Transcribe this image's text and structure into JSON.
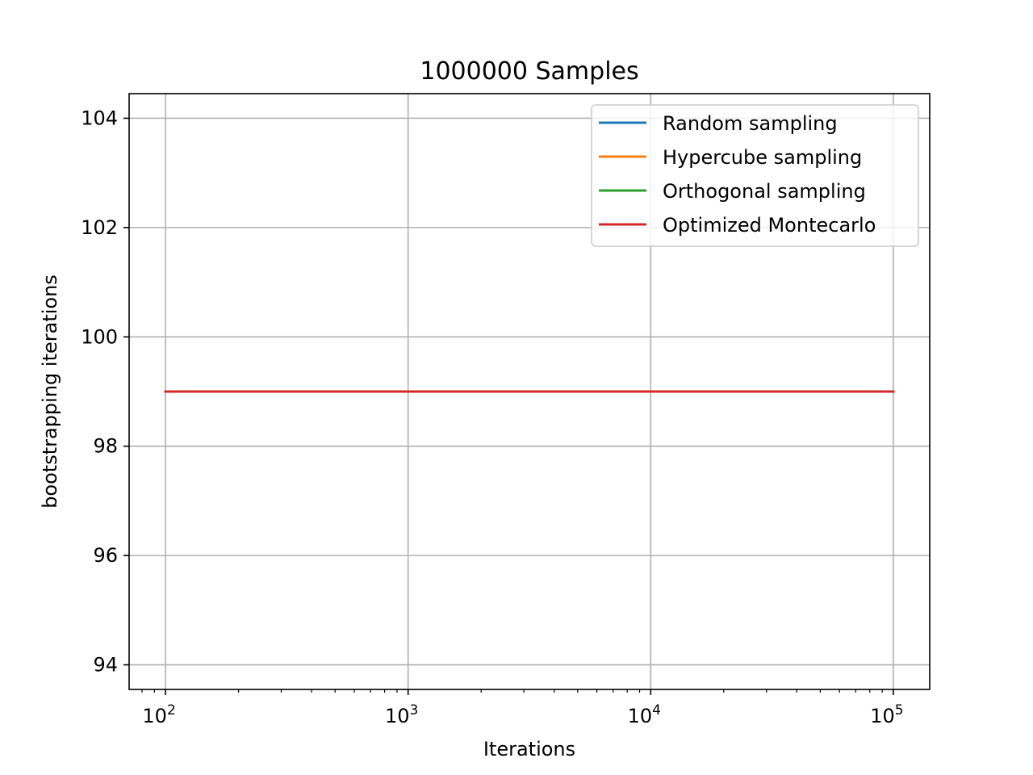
{
  "chart_data": {
    "type": "line",
    "title": "1000000 Samples",
    "xlabel": "Iterations",
    "ylabel": "bootstrapping iterations",
    "xscale": "log",
    "xlim": [
      70.8,
      141254
    ],
    "ylim": [
      93.55,
      104.45
    ],
    "xticks": [
      {
        "value": 100,
        "base": "10",
        "exp": "2"
      },
      {
        "value": 1000,
        "base": "10",
        "exp": "3"
      },
      {
        "value": 10000,
        "base": "10",
        "exp": "4"
      },
      {
        "value": 100000,
        "base": "10",
        "exp": "5"
      }
    ],
    "yticks": [
      94,
      96,
      98,
      100,
      102,
      104
    ],
    "grid": true,
    "legend_position": "upper right",
    "series": [
      {
        "name": "Random sampling",
        "color": "#1f77b4",
        "x": [
          100,
          1000,
          10000,
          100000
        ],
        "y": [
          99,
          99,
          99,
          99
        ]
      },
      {
        "name": "Hypercube sampling",
        "color": "#ff7f0e",
        "x": [
          100,
          1000,
          10000,
          100000
        ],
        "y": [
          99,
          99,
          99,
          99
        ]
      },
      {
        "name": "Orthogonal sampling",
        "color": "#2ca02c",
        "x": [
          100,
          1000,
          10000,
          100000
        ],
        "y": [
          99,
          99,
          99,
          99
        ]
      },
      {
        "name": "Optimized Montecarlo",
        "color": "#d62728",
        "x": [
          100,
          1000,
          10000,
          100000
        ],
        "y": [
          99,
          99,
          99,
          99
        ]
      }
    ]
  }
}
